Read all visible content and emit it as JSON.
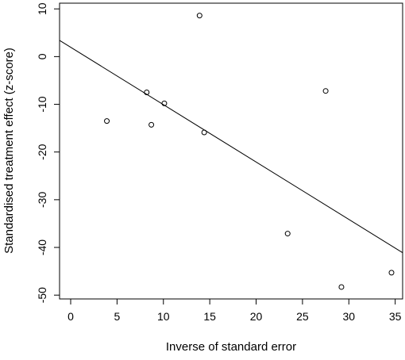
{
  "chart_data": {
    "type": "scatter",
    "title": "",
    "xlabel": "Inverse of standard error",
    "ylabel": "Standardised treatment effect (z-score)",
    "xlim": [
      -1.2,
      35.8
    ],
    "ylim": [
      -50.8,
      11.2
    ],
    "xticks": [
      0,
      5,
      10,
      15,
      20,
      25,
      30,
      35
    ],
    "yticks": [
      -50,
      -40,
      -30,
      -20,
      -10,
      0,
      10
    ],
    "grid": false,
    "legend": "none",
    "series": [
      {
        "points": [
          {
            "x": 3.9,
            "y": -13.5
          },
          {
            "x": 8.2,
            "y": -7.5
          },
          {
            "x": 8.7,
            "y": -14.3
          },
          {
            "x": 10.1,
            "y": -9.8
          },
          {
            "x": 13.9,
            "y": 8.6
          },
          {
            "x": 14.4,
            "y": -15.9
          },
          {
            "x": 23.4,
            "y": -37.1
          },
          {
            "x": 27.5,
            "y": -7.2
          },
          {
            "x": 29.2,
            "y": -48.3
          },
          {
            "x": 34.6,
            "y": -45.3
          }
        ]
      }
    ],
    "regression_line": {
      "x": [
        -1.2,
        35.8
      ],
      "y": [
        3.4,
        -41.1
      ]
    },
    "colors": {
      "points": "#000000",
      "line": "#000000",
      "frame": "#000000"
    }
  }
}
